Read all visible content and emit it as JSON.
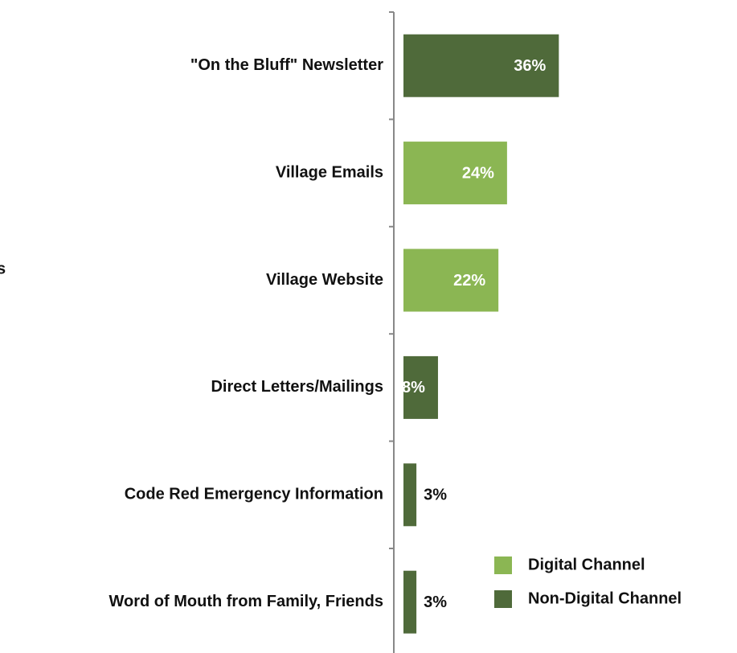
{
  "chart_data": {
    "type": "bar",
    "orientation": "horizontal",
    "side_label": "s",
    "categories": [
      "\"On the Bluff\" Newsletter",
      "Village Emails",
      "Village Website",
      "Direct Letters/Mailings",
      "Code Red Emergency Information",
      "Word of Mouth from Family, Friends"
    ],
    "series": [
      {
        "name": "Digital Channel",
        "color": "#8bb653",
        "values": [
          null,
          24,
          22,
          null,
          null,
          null
        ],
        "value_labels": [
          null,
          "24%",
          "22%",
          null,
          null,
          null
        ]
      },
      {
        "name": "Non-Digital Channel",
        "color": "#4f6a3a",
        "values": [
          36,
          null,
          null,
          8,
          3,
          3
        ],
        "value_labels": [
          "36%",
          null,
          null,
          "8%",
          "3%",
          "3%"
        ]
      }
    ],
    "legend": "bottom-right"
  }
}
